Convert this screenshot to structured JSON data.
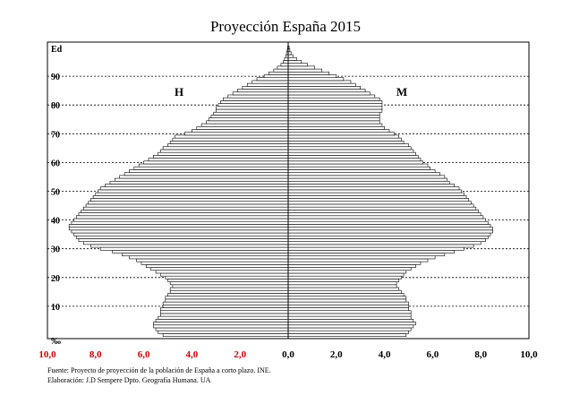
{
  "chart_data": {
    "type": "bar",
    "orientation": "horizontal-pyramid",
    "title": "Proyección España 2015",
    "y_axis_label": "Ed",
    "x_axis_unit": "‰",
    "y_ticks": [
      10,
      20,
      30,
      40,
      50,
      60,
      70,
      80,
      90
    ],
    "y_range": [
      0,
      100
    ],
    "x_ticks_left": [
      "10,0",
      "8,0",
      "6,0",
      "4,0",
      "2,0"
    ],
    "x_ticks_right": [
      "0,0",
      "2,0",
      "4,0",
      "6,0",
      "8,0",
      "10,0"
    ],
    "x_range": [
      -10,
      10
    ],
    "grid": "horizontal-dashed",
    "side_labels": {
      "left": "H",
      "right": "M"
    },
    "tick_colors": {
      "left": "#cc0000",
      "right": "#000000"
    },
    "ages": [
      0,
      1,
      2,
      3,
      4,
      5,
      6,
      7,
      8,
      9,
      10,
      11,
      12,
      13,
      14,
      15,
      16,
      17,
      18,
      19,
      20,
      21,
      22,
      23,
      24,
      25,
      26,
      27,
      28,
      29,
      30,
      31,
      32,
      33,
      34,
      35,
      36,
      37,
      38,
      39,
      40,
      41,
      42,
      43,
      44,
      45,
      46,
      47,
      48,
      49,
      50,
      51,
      52,
      53,
      54,
      55,
      56,
      57,
      58,
      59,
      60,
      61,
      62,
      63,
      64,
      65,
      66,
      67,
      68,
      69,
      70,
      71,
      72,
      73,
      74,
      75,
      76,
      77,
      78,
      79,
      80,
      81,
      82,
      83,
      84,
      85,
      86,
      87,
      88,
      89,
      90,
      91,
      92,
      93,
      94,
      95,
      96,
      97,
      98,
      99,
      100
    ],
    "series": [
      {
        "name": "H",
        "values": [
          5.2,
          5.4,
          5.5,
          5.6,
          5.6,
          5.5,
          5.4,
          5.3,
          5.3,
          5.3,
          5.2,
          5.2,
          5.1,
          5.1,
          5.0,
          4.9,
          4.9,
          4.8,
          4.9,
          5.0,
          5.1,
          5.3,
          5.5,
          5.7,
          5.9,
          6.1,
          6.3,
          6.6,
          6.9,
          7.3,
          7.8,
          8.2,
          8.5,
          8.7,
          8.8,
          8.9,
          9.0,
          9.1,
          9.1,
          9.0,
          8.9,
          8.8,
          8.7,
          8.6,
          8.5,
          8.4,
          8.3,
          8.2,
          8.1,
          8.0,
          7.9,
          7.8,
          7.6,
          7.4,
          7.2,
          7.0,
          6.8,
          6.6,
          6.4,
          6.2,
          6.0,
          5.8,
          5.6,
          5.4,
          5.3,
          5.2,
          5.0,
          4.9,
          4.8,
          4.7,
          4.3,
          4.0,
          3.8,
          3.6,
          3.4,
          3.3,
          3.2,
          3.1,
          3.0,
          3.0,
          2.9,
          2.8,
          2.7,
          2.5,
          2.3,
          2.1,
          1.9,
          1.7,
          1.5,
          1.3,
          1.0,
          0.8,
          0.6,
          0.45,
          0.3,
          0.2,
          0.15,
          0.1,
          0.07,
          0.04,
          0.02
        ]
      },
      {
        "name": "M",
        "values": [
          4.9,
          5.0,
          5.1,
          5.2,
          5.3,
          5.2,
          5.1,
          5.1,
          5.1,
          5.0,
          5.0,
          5.0,
          4.9,
          4.9,
          4.8,
          4.7,
          4.6,
          4.5,
          4.5,
          4.6,
          4.7,
          4.8,
          4.9,
          5.1,
          5.3,
          5.5,
          5.8,
          6.1,
          6.5,
          6.9,
          7.3,
          7.7,
          8.0,
          8.2,
          8.3,
          8.4,
          8.5,
          8.5,
          8.4,
          8.3,
          8.2,
          8.1,
          8.0,
          7.9,
          7.8,
          7.7,
          7.6,
          7.5,
          7.4,
          7.3,
          7.2,
          7.1,
          6.9,
          6.7,
          6.6,
          6.5,
          6.3,
          6.1,
          5.9,
          5.8,
          5.6,
          5.5,
          5.4,
          5.3,
          5.2,
          5.1,
          5.0,
          4.8,
          4.7,
          4.6,
          4.4,
          4.2,
          4.0,
          3.9,
          3.8,
          3.8,
          3.8,
          3.8,
          3.9,
          3.9,
          3.9,
          3.9,
          3.8,
          3.6,
          3.4,
          3.2,
          3.0,
          2.8,
          2.6,
          2.3,
          2.0,
          1.7,
          1.4,
          1.1,
          0.8,
          0.55,
          0.35,
          0.2,
          0.12,
          0.07,
          0.04
        ]
      }
    ]
  },
  "footer": {
    "source": "Fuente: Proyecto de proyección de la población de España a corto plazo. INE.",
    "credit": "Elaboración: J.D Sempere Dpto. Geografía Humana. UA"
  }
}
